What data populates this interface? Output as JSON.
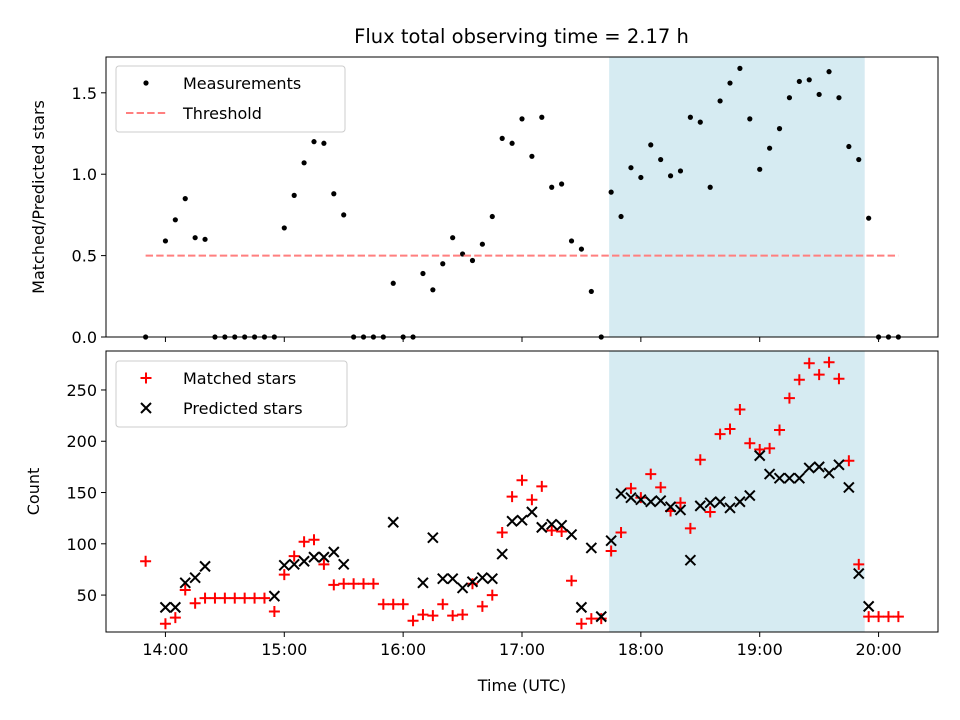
{
  "title": "Flux total observing time = 2.17 h",
  "chart_data": [
    {
      "type": "scatter",
      "ylabel": "Matched/Predicted stars",
      "xlim": [
        "13:30",
        "20:30"
      ],
      "ylim": [
        0,
        1.72
      ],
      "yticks": [
        0.0,
        0.5,
        1.0,
        1.5
      ],
      "xticks": [
        "14:00",
        "15:00",
        "16:00",
        "17:00",
        "18:00",
        "19:00",
        "20:00"
      ],
      "legend": "top-left",
      "grid": false,
      "highlight": {
        "x": [
          "17:44",
          "19:53"
        ],
        "color": "#add8e6"
      },
      "series": [
        {
          "name": "Measurements",
          "marker": "dot",
          "color": "#000000",
          "x": [
            "13:50",
            "14:00",
            "14:05",
            "14:10",
            "14:15",
            "14:20",
            "14:25",
            "14:30",
            "14:35",
            "14:40",
            "14:45",
            "14:50",
            "14:55",
            "15:00",
            "15:05",
            "15:10",
            "15:15",
            "15:20",
            "15:25",
            "15:30",
            "15:35",
            "15:40",
            "15:45",
            "15:50",
            "15:55",
            "16:00",
            "16:05",
            "16:10",
            "16:15",
            "16:20",
            "16:25",
            "16:30",
            "16:35",
            "16:40",
            "16:45",
            "16:50",
            "16:55",
            "17:00",
            "17:05",
            "17:10",
            "17:15",
            "17:20",
            "17:25",
            "17:30",
            "17:35",
            "17:40",
            "17:45",
            "17:50",
            "17:55",
            "18:00",
            "18:05",
            "18:10",
            "18:15",
            "18:20",
            "18:25",
            "18:30",
            "18:35",
            "18:40",
            "18:45",
            "18:50",
            "18:55",
            "19:00",
            "19:05",
            "19:10",
            "19:15",
            "19:20",
            "19:25",
            "19:30",
            "19:35",
            "19:40",
            "19:45",
            "19:50",
            "19:55",
            "20:00",
            "20:05",
            "20:10"
          ],
          "y": [
            0.0,
            0.59,
            0.72,
            0.85,
            0.61,
            0.6,
            0.0,
            0.0,
            0.0,
            0.0,
            0.0,
            0.0,
            0.0,
            0.67,
            0.87,
            1.07,
            1.2,
            1.19,
            0.88,
            0.75,
            0.0,
            0.0,
            0.0,
            0.0,
            0.33,
            0.0,
            0.0,
            0.39,
            0.29,
            0.45,
            0.61,
            0.51,
            0.47,
            0.57,
            0.74,
            1.22,
            1.19,
            1.34,
            1.11,
            1.35,
            0.92,
            0.94,
            0.59,
            0.54,
            0.28,
            0.0,
            0.89,
            0.74,
            1.04,
            0.98,
            1.18,
            1.09,
            0.99,
            1.02,
            1.35,
            1.32,
            0.92,
            1.45,
            1.56,
            1.65,
            1.34,
            1.03,
            1.16,
            1.28,
            1.47,
            1.57,
            1.58,
            1.49,
            1.63,
            1.47,
            1.17,
            1.09,
            0.73,
            0.0,
            0.0,
            0.0
          ]
        },
        {
          "name": "Threshold",
          "marker": "dashed-line",
          "color": "#ff7f7f",
          "x": [
            "13:50",
            "20:10"
          ],
          "y": [
            0.5,
            0.5
          ]
        }
      ]
    },
    {
      "type": "scatter",
      "ylabel": "Count",
      "xlabel": "Time (UTC)",
      "xlim": [
        "13:30",
        "20:30"
      ],
      "ylim": [
        14,
        288
      ],
      "yticks": [
        50,
        100,
        150,
        200,
        250
      ],
      "xticks": [
        "14:00",
        "15:00",
        "16:00",
        "17:00",
        "18:00",
        "19:00",
        "20:00"
      ],
      "legend": "top-left",
      "grid": false,
      "highlight": {
        "x": [
          "17:44",
          "19:53"
        ],
        "color": "#add8e6"
      },
      "series": [
        {
          "name": "Matched stars",
          "marker": "plus",
          "color": "#ff0000",
          "x": [
            "13:50",
            "14:00",
            "14:05",
            "14:10",
            "14:15",
            "14:20",
            "14:25",
            "14:30",
            "14:35",
            "14:40",
            "14:45",
            "14:50",
            "14:55",
            "15:00",
            "15:05",
            "15:10",
            "15:15",
            "15:20",
            "15:25",
            "15:30",
            "15:35",
            "15:40",
            "15:45",
            "15:50",
            "15:55",
            "16:00",
            "16:05",
            "16:10",
            "16:15",
            "16:20",
            "16:25",
            "16:30",
            "16:35",
            "16:40",
            "16:45",
            "16:50",
            "16:55",
            "17:00",
            "17:05",
            "17:10",
            "17:15",
            "17:20",
            "17:25",
            "17:30",
            "17:35",
            "17:40",
            "17:45",
            "17:50",
            "17:55",
            "18:00",
            "18:05",
            "18:10",
            "18:15",
            "18:20",
            "18:25",
            "18:30",
            "18:35",
            "18:40",
            "18:45",
            "18:50",
            "18:55",
            "19:00",
            "19:05",
            "19:10",
            "19:15",
            "19:20",
            "19:25",
            "19:30",
            "19:35",
            "19:40",
            "19:45",
            "19:50",
            "19:55",
            "20:00",
            "20:05",
            "20:10"
          ],
          "y": [
            83,
            22,
            28,
            55,
            42,
            47,
            47,
            47,
            47,
            47,
            47,
            47,
            34,
            70,
            88,
            102,
            104,
            80,
            60,
            61,
            61,
            61,
            61,
            41,
            41,
            41,
            25,
            31,
            30,
            41,
            30,
            31,
            61,
            39,
            50,
            111,
            146,
            162,
            143,
            156,
            113,
            112,
            64,
            22,
            27,
            27,
            93,
            111,
            154,
            145,
            168,
            155,
            132,
            140,
            115,
            182,
            131,
            207,
            212,
            231,
            198,
            192,
            193,
            211,
            242,
            260,
            276,
            265,
            277,
            261,
            181,
            80,
            29,
            29,
            29,
            29
          ]
        },
        {
          "name": "Predicted stars",
          "marker": "x",
          "color": "#000000",
          "x": [
            "14:00",
            "14:05",
            "14:10",
            "14:15",
            "14:20",
            "14:55",
            "15:00",
            "15:05",
            "15:10",
            "15:15",
            "15:20",
            "15:25",
            "15:30",
            "15:55",
            "16:10",
            "16:15",
            "16:20",
            "16:25",
            "16:30",
            "16:35",
            "16:40",
            "16:45",
            "16:50",
            "16:55",
            "17:00",
            "17:05",
            "17:10",
            "17:15",
            "17:20",
            "17:25",
            "17:30",
            "17:35",
            "17:40",
            "17:45",
            "17:50",
            "17:55",
            "18:00",
            "18:05",
            "18:10",
            "18:15",
            "18:20",
            "18:25",
            "18:30",
            "18:35",
            "18:40",
            "18:45",
            "18:50",
            "18:55",
            "19:00",
            "19:05",
            "19:10",
            "19:15",
            "19:20",
            "19:25",
            "19:30",
            "19:35",
            "19:40",
            "19:45",
            "19:50",
            "19:55"
          ],
          "y": [
            38,
            38,
            62,
            67,
            78,
            49,
            79,
            80,
            83,
            87,
            87,
            92,
            80,
            121,
            62,
            106,
            66,
            66,
            57,
            63,
            67,
            66,
            90,
            122,
            123,
            131,
            116,
            119,
            118,
            109,
            38,
            96,
            29,
            103,
            149,
            145,
            143,
            141,
            142,
            136,
            133,
            84,
            137,
            140,
            141,
            135,
            141,
            147,
            186,
            168,
            164,
            164,
            164,
            174,
            175,
            169,
            177,
            155,
            71,
            39
          ]
        }
      ]
    }
  ]
}
